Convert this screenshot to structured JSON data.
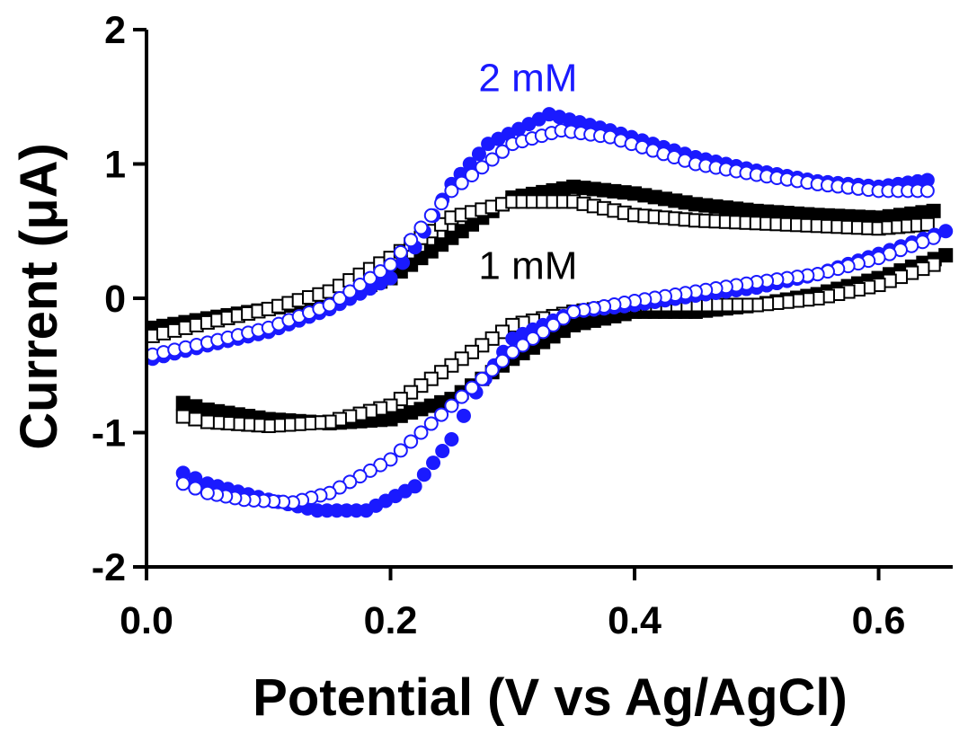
{
  "chart_data": {
    "type": "scatter",
    "xlabel": "Potential (V vs Ag/AgCl)",
    "ylabel": "Current (μA)",
    "xlim": [
      0.0,
      0.66
    ],
    "ylim": [
      -2,
      2
    ],
    "x_ticks": [
      0.0,
      0.2,
      0.4,
      0.6
    ],
    "x_tick_labels": [
      "0.0",
      "0.2",
      "0.4",
      "0.6"
    ],
    "y_ticks": [
      -2,
      -1,
      0,
      1,
      2
    ],
    "y_tick_labels": [
      "-2",
      "-1",
      "0",
      "1",
      "2"
    ],
    "grid": false,
    "colors": {
      "black": "#000000",
      "blue": "#1a1aff"
    },
    "annotations": [
      {
        "text": "2 mM",
        "x": 0.32,
        "y": 1.65,
        "color": "#1a1aff"
      },
      {
        "text": "1 mM",
        "x": 0.32,
        "y": 0.25,
        "color": "#000000"
      }
    ],
    "series": [
      {
        "color": "#000000",
        "marker": "square-filled",
        "forward": [
          [
            0.005,
            -0.22
          ],
          [
            0.05,
            -0.15
          ],
          [
            0.1,
            -0.08
          ],
          [
            0.15,
            0.0
          ],
          [
            0.2,
            0.15
          ],
          [
            0.25,
            0.45
          ],
          [
            0.3,
            0.75
          ],
          [
            0.35,
            0.83
          ],
          [
            0.4,
            0.78
          ],
          [
            0.45,
            0.7
          ],
          [
            0.5,
            0.65
          ],
          [
            0.55,
            0.62
          ],
          [
            0.6,
            0.6
          ],
          [
            0.645,
            0.65
          ]
        ],
        "reverse": [
          [
            0.655,
            0.32
          ],
          [
            0.6,
            0.15
          ],
          [
            0.55,
            0.03
          ],
          [
            0.5,
            -0.05
          ],
          [
            0.45,
            -0.1
          ],
          [
            0.4,
            -0.1
          ],
          [
            0.35,
            -0.2
          ],
          [
            0.3,
            -0.45
          ],
          [
            0.25,
            -0.75
          ],
          [
            0.2,
            -0.9
          ],
          [
            0.15,
            -0.93
          ],
          [
            0.1,
            -0.9
          ],
          [
            0.05,
            -0.83
          ],
          [
            0.03,
            -0.78
          ]
        ]
      },
      {
        "color": "#000000",
        "marker": "square-open",
        "forward": [
          [
            0.005,
            -0.28
          ],
          [
            0.05,
            -0.18
          ],
          [
            0.1,
            -0.08
          ],
          [
            0.15,
            0.05
          ],
          [
            0.2,
            0.3
          ],
          [
            0.25,
            0.6
          ],
          [
            0.3,
            0.72
          ],
          [
            0.35,
            0.72
          ],
          [
            0.4,
            0.62
          ],
          [
            0.45,
            0.58
          ],
          [
            0.5,
            0.56
          ],
          [
            0.55,
            0.54
          ],
          [
            0.6,
            0.52
          ],
          [
            0.64,
            0.55
          ]
        ],
        "reverse": [
          [
            0.645,
            0.25
          ],
          [
            0.6,
            0.1
          ],
          [
            0.55,
            0.0
          ],
          [
            0.5,
            -0.05
          ],
          [
            0.45,
            -0.05
          ],
          [
            0.4,
            -0.05
          ],
          [
            0.35,
            -0.1
          ],
          [
            0.3,
            -0.2
          ],
          [
            0.25,
            -0.5
          ],
          [
            0.2,
            -0.8
          ],
          [
            0.15,
            -0.92
          ],
          [
            0.1,
            -0.95
          ],
          [
            0.05,
            -0.92
          ],
          [
            0.03,
            -0.88
          ]
        ]
      },
      {
        "color": "#1a1aff",
        "marker": "circle-filled",
        "forward": [
          [
            0.005,
            -0.45
          ],
          [
            0.05,
            -0.35
          ],
          [
            0.1,
            -0.25
          ],
          [
            0.15,
            -0.08
          ],
          [
            0.2,
            0.15
          ],
          [
            0.22,
            0.38
          ],
          [
            0.25,
            0.85
          ],
          [
            0.28,
            1.15
          ],
          [
            0.33,
            1.37
          ],
          [
            0.38,
            1.25
          ],
          [
            0.45,
            1.05
          ],
          [
            0.5,
            0.95
          ],
          [
            0.55,
            0.87
          ],
          [
            0.6,
            0.83
          ],
          [
            0.64,
            0.88
          ]
        ],
        "reverse": [
          [
            0.655,
            0.5
          ],
          [
            0.6,
            0.33
          ],
          [
            0.55,
            0.18
          ],
          [
            0.5,
            0.08
          ],
          [
            0.45,
            0.02
          ],
          [
            0.4,
            -0.05
          ],
          [
            0.35,
            -0.1
          ],
          [
            0.3,
            -0.3
          ],
          [
            0.27,
            -0.7
          ],
          [
            0.25,
            -1.05
          ],
          [
            0.22,
            -1.4
          ],
          [
            0.18,
            -1.58
          ],
          [
            0.14,
            -1.58
          ],
          [
            0.1,
            -1.5
          ],
          [
            0.05,
            -1.38
          ],
          [
            0.03,
            -1.3
          ]
        ]
      },
      {
        "color": "#1a1aff",
        "marker": "circle-open",
        "forward": [
          [
            0.005,
            -0.42
          ],
          [
            0.05,
            -0.33
          ],
          [
            0.1,
            -0.22
          ],
          [
            0.15,
            -0.05
          ],
          [
            0.2,
            0.25
          ],
          [
            0.25,
            0.8
          ],
          [
            0.3,
            1.15
          ],
          [
            0.34,
            1.25
          ],
          [
            0.38,
            1.2
          ],
          [
            0.45,
            1.0
          ],
          [
            0.5,
            0.92
          ],
          [
            0.55,
            0.85
          ],
          [
            0.6,
            0.8
          ],
          [
            0.64,
            0.8
          ]
        ],
        "reverse": [
          [
            0.645,
            0.45
          ],
          [
            0.6,
            0.3
          ],
          [
            0.55,
            0.18
          ],
          [
            0.5,
            0.12
          ],
          [
            0.45,
            0.05
          ],
          [
            0.4,
            -0.02
          ],
          [
            0.35,
            -0.1
          ],
          [
            0.3,
            -0.4
          ],
          [
            0.25,
            -0.8
          ],
          [
            0.2,
            -1.2
          ],
          [
            0.15,
            -1.45
          ],
          [
            0.12,
            -1.52
          ],
          [
            0.08,
            -1.5
          ],
          [
            0.05,
            -1.45
          ],
          [
            0.03,
            -1.38
          ]
        ]
      }
    ]
  }
}
